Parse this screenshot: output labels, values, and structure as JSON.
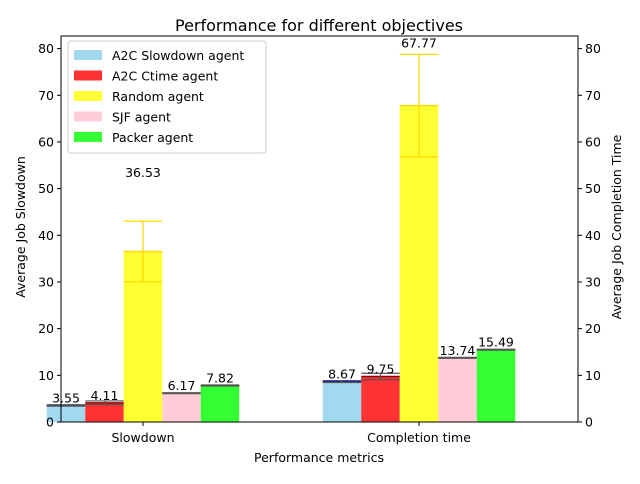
{
  "chart_data": {
    "type": "bar",
    "title": "Performance for different objectives",
    "xlabel": "Performance metrics",
    "ylabel": "Average Job Slowdown",
    "ylabel_right": "Average Job Completion Time",
    "categories": [
      "Slowdown",
      "Completion time"
    ],
    "ylim": [
      0,
      82.7
    ],
    "yticks": [
      0,
      10,
      20,
      30,
      40,
      50,
      60,
      70,
      80
    ],
    "grid": false,
    "legend_position": "top-left",
    "series": [
      {
        "name": "A2C Slowdown agent",
        "color": "#a2d9ee",
        "edge_color": "#0000ff",
        "values": [
          3.55,
          8.67
        ],
        "errors": [
          0.15,
          0.2
        ]
      },
      {
        "name": "A2C Ctime agent",
        "color": "#ff3333",
        "edge_color": "#8b0000",
        "values": [
          4.11,
          9.75
        ],
        "errors": [
          0.4,
          0.7
        ]
      },
      {
        "name": "Random agent",
        "color": "#ffff33",
        "edge_color": "#ffd700",
        "values": [
          36.53,
          67.77
        ],
        "errors": [
          6.5,
          11.0
        ]
      },
      {
        "name": "SJF agent",
        "color": "#ffccd8",
        "edge_color": "#ff80a0",
        "values": [
          6.17,
          13.74
        ],
        "errors": [
          0.1,
          0.1
        ]
      },
      {
        "name": "Packer agent",
        "color": "#33ff33",
        "edge_color": "#008000",
        "values": [
          7.82,
          15.49
        ],
        "errors": [
          0.1,
          0.1
        ]
      }
    ],
    "bar_labels": [
      [
        "3.55",
        "4.11",
        "36.53",
        "6.17",
        "7.82"
      ],
      [
        "8.67",
        "9.75",
        "67.77",
        "13.74",
        "15.49"
      ]
    ]
  }
}
